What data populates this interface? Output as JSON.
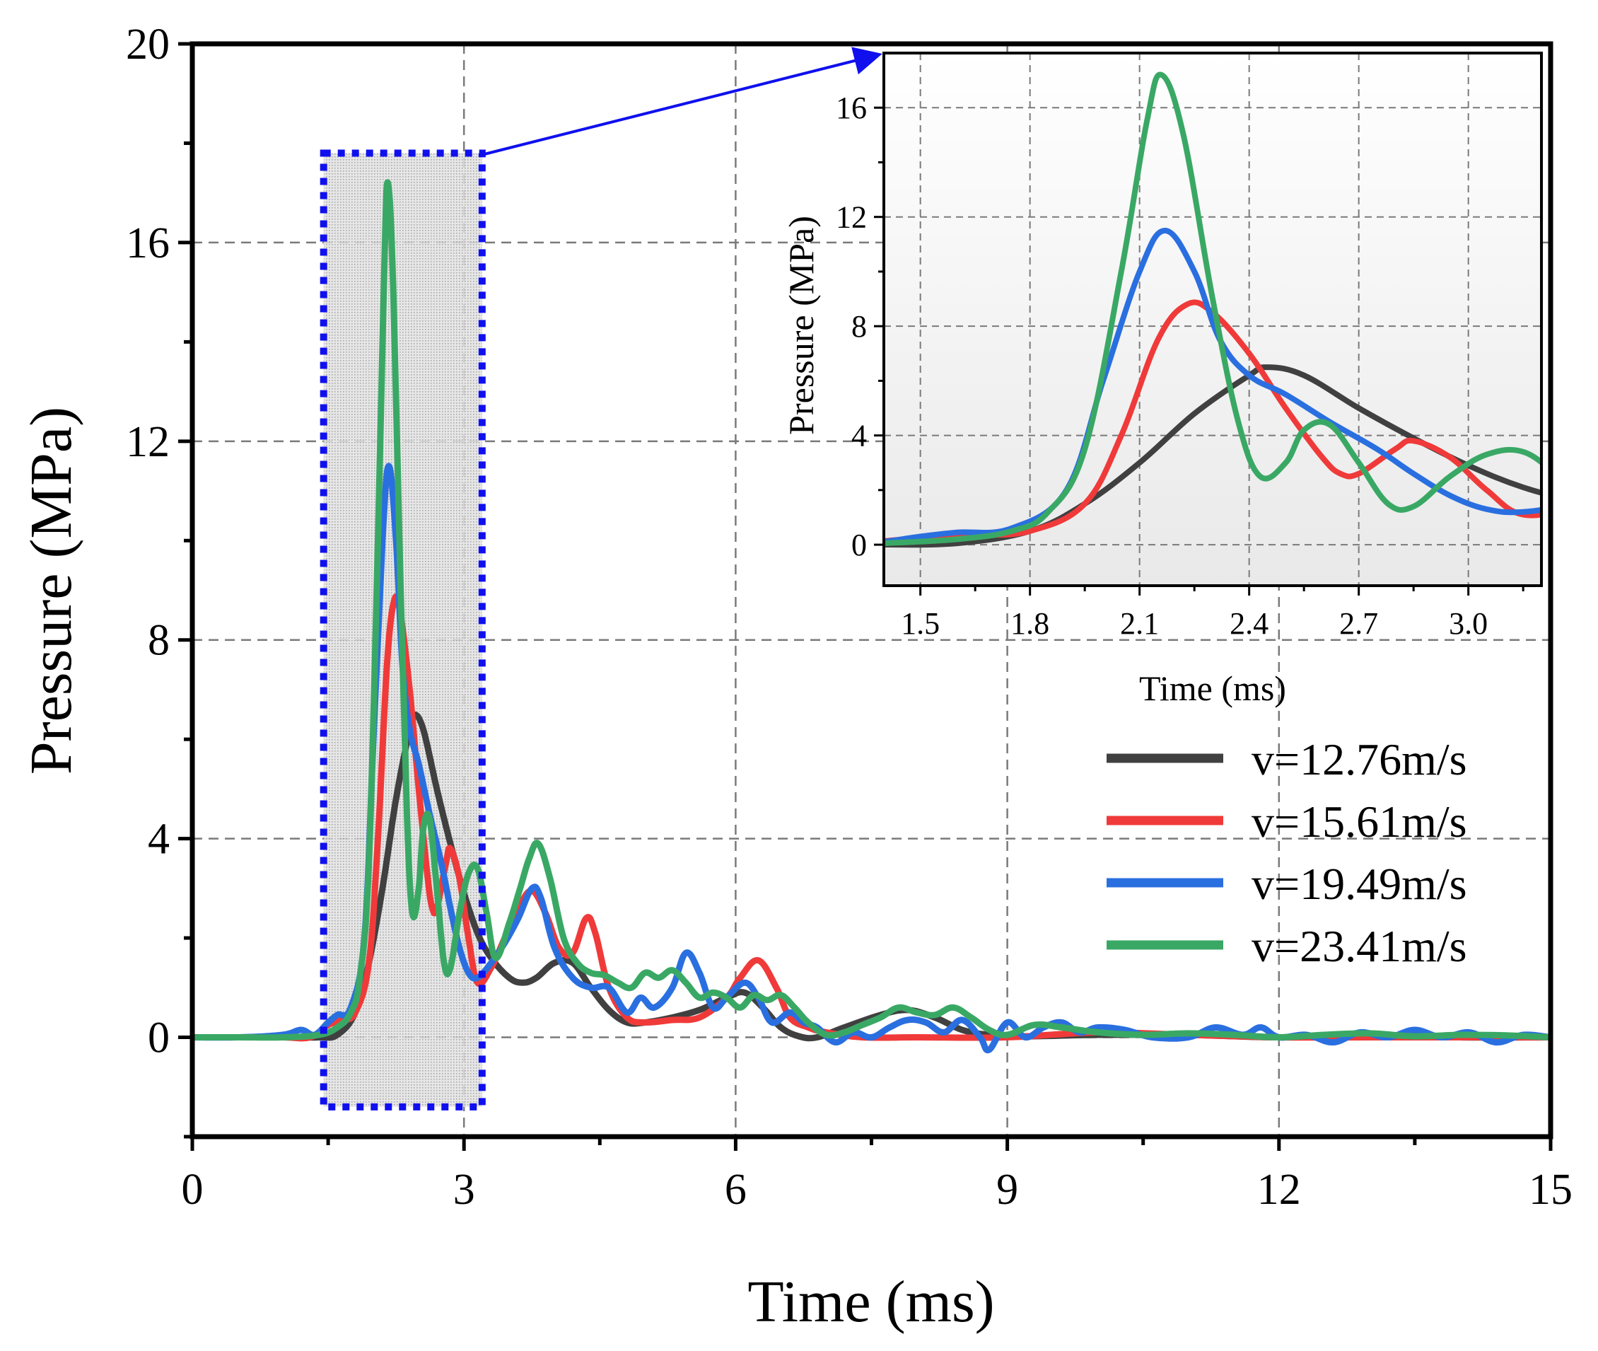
{
  "colors": {
    "v12": "#404040",
    "v15": "#f03a3a",
    "v19": "#2a6fe0",
    "v23": "#3aa865",
    "highlight": "#1010ee",
    "grid": "#7a7a7a"
  },
  "chart_data": [
    {
      "id": "main",
      "type": "line",
      "xlabel": "Time (ms)",
      "ylabel": "Pressure (MPa)",
      "xlim": [
        0,
        15
      ],
      "ylim": [
        -2,
        20
      ],
      "xticks": [
        "0",
        "3",
        "6",
        "9",
        "12",
        "15"
      ],
      "yticks": [
        "0",
        "4",
        "8",
        "12",
        "16",
        "20"
      ],
      "grid": true,
      "legend_position": "right",
      "zoom_region": {
        "x": [
          1.45,
          3.2
        ],
        "y": [
          -1.4,
          17.8
        ]
      },
      "series": [
        {
          "name": "v=12.76m/s",
          "color": "#404040",
          "points": [
            [
              0,
              0
            ],
            [
              0.5,
              0
            ],
            [
              1.0,
              0
            ],
            [
              1.4,
              0
            ],
            [
              1.6,
              0.05
            ],
            [
              1.8,
              0.5
            ],
            [
              1.95,
              1.5
            ],
            [
              2.1,
              3.0
            ],
            [
              2.25,
              4.8
            ],
            [
              2.4,
              6.2
            ],
            [
              2.45,
              6.5
            ],
            [
              2.55,
              6.2
            ],
            [
              2.7,
              5.0
            ],
            [
              2.85,
              3.9
            ],
            [
              3.0,
              2.9
            ],
            [
              3.15,
              2.1
            ],
            [
              3.3,
              1.6
            ],
            [
              3.5,
              1.2
            ],
            [
              3.65,
              1.1
            ],
            [
              3.8,
              1.2
            ],
            [
              4.0,
              1.5
            ],
            [
              4.2,
              1.5
            ],
            [
              4.4,
              1.0
            ],
            [
              4.6,
              0.55
            ],
            [
              4.8,
              0.3
            ],
            [
              5.0,
              0.3
            ],
            [
              5.3,
              0.4
            ],
            [
              5.6,
              0.55
            ],
            [
              5.9,
              0.8
            ],
            [
              6.1,
              0.9
            ],
            [
              6.3,
              0.6
            ],
            [
              6.5,
              0.2
            ],
            [
              6.7,
              0.02
            ],
            [
              6.9,
              0.0
            ],
            [
              7.2,
              0.2
            ],
            [
              7.6,
              0.45
            ],
            [
              7.9,
              0.55
            ],
            [
              8.2,
              0.4
            ],
            [
              8.5,
              0.15
            ],
            [
              8.8,
              0.05
            ],
            [
              9.2,
              0.02
            ],
            [
              10,
              0.05
            ],
            [
              11,
              0.05
            ],
            [
              12,
              0.0
            ],
            [
              13,
              0.05
            ],
            [
              14,
              0.0
            ],
            [
              15,
              0
            ]
          ]
        },
        {
          "name": "v=15.61m/s",
          "color": "#f03a3a",
          "points": [
            [
              0,
              0
            ],
            [
              0.5,
              0
            ],
            [
              1.0,
              0
            ],
            [
              1.3,
              0
            ],
            [
              1.5,
              0.25
            ],
            [
              1.65,
              0.35
            ],
            [
              1.8,
              0.5
            ],
            [
              1.95,
              1.5
            ],
            [
              2.05,
              4.0
            ],
            [
              2.15,
              7.5
            ],
            [
              2.23,
              8.8
            ],
            [
              2.3,
              8.5
            ],
            [
              2.4,
              7.0
            ],
            [
              2.5,
              5.0
            ],
            [
              2.6,
              3.2
            ],
            [
              2.65,
              2.6
            ],
            [
              2.7,
              2.6
            ],
            [
              2.8,
              3.5
            ],
            [
              2.85,
              3.8
            ],
            [
              2.95,
              3.2
            ],
            [
              3.05,
              2.0
            ],
            [
              3.15,
              1.1
            ],
            [
              3.3,
              1.4
            ],
            [
              3.45,
              2.0
            ],
            [
              3.6,
              2.6
            ],
            [
              3.75,
              2.95
            ],
            [
              3.9,
              2.5
            ],
            [
              4.05,
              1.8
            ],
            [
              4.2,
              1.7
            ],
            [
              4.35,
              2.4
            ],
            [
              4.45,
              2.1
            ],
            [
              4.6,
              1.0
            ],
            [
              4.8,
              0.4
            ],
            [
              5.0,
              0.3
            ],
            [
              5.3,
              0.35
            ],
            [
              5.6,
              0.4
            ],
            [
              5.9,
              0.8
            ],
            [
              6.05,
              1.2
            ],
            [
              6.25,
              1.55
            ],
            [
              6.45,
              1.0
            ],
            [
              6.6,
              0.4
            ],
            [
              6.8,
              0.2
            ],
            [
              7.0,
              0.1
            ],
            [
              7.4,
              0.0
            ],
            [
              8,
              0.0
            ],
            [
              9,
              0.0
            ],
            [
              10,
              0.1
            ],
            [
              11,
              0.05
            ],
            [
              12,
              0.0
            ],
            [
              13,
              0.0
            ],
            [
              14,
              0.0
            ],
            [
              15,
              0
            ]
          ]
        },
        {
          "name": "v=19.49m/s",
          "color": "#2a6fe0",
          "points": [
            [
              0,
              0
            ],
            [
              0.5,
              0
            ],
            [
              1.0,
              0.05
            ],
            [
              1.2,
              0.15
            ],
            [
              1.35,
              0.05
            ],
            [
              1.5,
              0.3
            ],
            [
              1.6,
              0.45
            ],
            [
              1.75,
              0.6
            ],
            [
              1.9,
              2.0
            ],
            [
              2.0,
              6.0
            ],
            [
              2.1,
              10.0
            ],
            [
              2.17,
              11.5
            ],
            [
              2.25,
              10.0
            ],
            [
              2.32,
              7.5
            ],
            [
              2.4,
              6.2
            ],
            [
              2.5,
              5.5
            ],
            [
              2.62,
              4.5
            ],
            [
              2.75,
              3.5
            ],
            [
              2.85,
              2.6
            ],
            [
              2.95,
              1.8
            ],
            [
              3.05,
              1.3
            ],
            [
              3.15,
              1.2
            ],
            [
              3.3,
              1.5
            ],
            [
              3.45,
              1.9
            ],
            [
              3.6,
              2.4
            ],
            [
              3.75,
              3.0
            ],
            [
              3.85,
              2.8
            ],
            [
              4.0,
              1.8
            ],
            [
              4.2,
              1.2
            ],
            [
              4.4,
              1.0
            ],
            [
              4.6,
              1.0
            ],
            [
              4.8,
              0.5
            ],
            [
              4.95,
              0.8
            ],
            [
              5.1,
              0.6
            ],
            [
              5.3,
              1.0
            ],
            [
              5.45,
              1.7
            ],
            [
              5.6,
              1.3
            ],
            [
              5.75,
              0.6
            ],
            [
              5.9,
              0.8
            ],
            [
              6.1,
              1.1
            ],
            [
              6.25,
              0.8
            ],
            [
              6.4,
              0.3
            ],
            [
              6.6,
              0.5
            ],
            [
              6.75,
              0.3
            ],
            [
              6.9,
              0.2
            ],
            [
              7.1,
              -0.1
            ],
            [
              7.3,
              0.1
            ],
            [
              7.5,
              0.0
            ],
            [
              7.7,
              0.2
            ],
            [
              7.9,
              0.35
            ],
            [
              8.1,
              0.3
            ],
            [
              8.3,
              0.1
            ],
            [
              8.5,
              0.35
            ],
            [
              8.7,
              0.0
            ],
            [
              8.8,
              -0.25
            ],
            [
              9.0,
              0.3
            ],
            [
              9.2,
              0.0
            ],
            [
              9.4,
              0.2
            ],
            [
              9.6,
              0.3
            ],
            [
              9.8,
              0.1
            ],
            [
              10.0,
              0.2
            ],
            [
              10.3,
              0.15
            ],
            [
              10.6,
              0.0
            ],
            [
              11.0,
              0.0
            ],
            [
              11.3,
              0.2
            ],
            [
              11.6,
              0.05
            ],
            [
              11.8,
              0.2
            ],
            [
              12.0,
              0.0
            ],
            [
              12.3,
              0.05
            ],
            [
              12.6,
              -0.1
            ],
            [
              12.9,
              0.1
            ],
            [
              13.2,
              0.0
            ],
            [
              13.5,
              0.15
            ],
            [
              13.8,
              0.0
            ],
            [
              14.1,
              0.1
            ],
            [
              14.4,
              -0.1
            ],
            [
              14.7,
              0.05
            ],
            [
              15,
              0
            ]
          ]
        },
        {
          "name": "v=23.41m/s",
          "color": "#3aa865",
          "points": [
            [
              0,
              0
            ],
            [
              0.5,
              0
            ],
            [
              1.0,
              0
            ],
            [
              1.4,
              0.05
            ],
            [
              1.6,
              0.2
            ],
            [
              1.75,
              0.5
            ],
            [
              1.85,
              1.2
            ],
            [
              1.95,
              3.5
            ],
            [
              2.05,
              10.0
            ],
            [
              2.12,
              15.5
            ],
            [
              2.16,
              17.2
            ],
            [
              2.22,
              15.0
            ],
            [
              2.3,
              9.0
            ],
            [
              2.37,
              4.5
            ],
            [
              2.43,
              2.5
            ],
            [
              2.5,
              3.0
            ],
            [
              2.55,
              4.2
            ],
            [
              2.62,
              4.4
            ],
            [
              2.7,
              3.0
            ],
            [
              2.78,
              1.5
            ],
            [
              2.85,
              1.4
            ],
            [
              2.95,
              2.5
            ],
            [
              3.05,
              3.3
            ],
            [
              3.15,
              3.4
            ],
            [
              3.25,
              2.5
            ],
            [
              3.35,
              1.6
            ],
            [
              3.5,
              2.3
            ],
            [
              3.62,
              3.0
            ],
            [
              3.72,
              3.6
            ],
            [
              3.82,
              3.9
            ],
            [
              3.95,
              3.2
            ],
            [
              4.1,
              2.0
            ],
            [
              4.25,
              1.5
            ],
            [
              4.4,
              1.3
            ],
            [
              4.55,
              1.25
            ],
            [
              4.7,
              1.1
            ],
            [
              4.85,
              1.0
            ],
            [
              5.0,
              1.3
            ],
            [
              5.15,
              1.2
            ],
            [
              5.3,
              1.35
            ],
            [
              5.45,
              1.1
            ],
            [
              5.6,
              0.8
            ],
            [
              5.75,
              0.9
            ],
            [
              5.9,
              0.8
            ],
            [
              6.05,
              0.6
            ],
            [
              6.2,
              0.85
            ],
            [
              6.35,
              0.75
            ],
            [
              6.5,
              0.85
            ],
            [
              6.65,
              0.6
            ],
            [
              6.8,
              0.3
            ],
            [
              7.0,
              0.05
            ],
            [
              7.2,
              0.1
            ],
            [
              7.4,
              0.25
            ],
            [
              7.6,
              0.4
            ],
            [
              7.8,
              0.6
            ],
            [
              8.0,
              0.5
            ],
            [
              8.2,
              0.45
            ],
            [
              8.4,
              0.6
            ],
            [
              8.6,
              0.4
            ],
            [
              8.8,
              0.15
            ],
            [
              9.0,
              0.05
            ],
            [
              9.3,
              0.25
            ],
            [
              9.6,
              0.2
            ],
            [
              10.0,
              0.1
            ],
            [
              10.5,
              0.05
            ],
            [
              11.0,
              0.08
            ],
            [
              11.5,
              0.05
            ],
            [
              12.0,
              0.0
            ],
            [
              12.5,
              0.05
            ],
            [
              13.0,
              0.08
            ],
            [
              13.5,
              0.02
            ],
            [
              14.0,
              0.05
            ],
            [
              14.5,
              0.04
            ],
            [
              15,
              0
            ]
          ]
        }
      ]
    },
    {
      "id": "inset",
      "type": "line",
      "xlabel": "Time (ms)",
      "ylabel": "Pressure (MPa)",
      "xlim": [
        1.4,
        3.2
      ],
      "ylim": [
        -1.5,
        18
      ],
      "xticks": [
        "1.5",
        "1.8",
        "2.1",
        "2.4",
        "2.7",
        "3.0"
      ],
      "yticks": [
        "0",
        "4",
        "8",
        "12",
        "16"
      ],
      "grid": true,
      "series_ref": "main"
    }
  ]
}
